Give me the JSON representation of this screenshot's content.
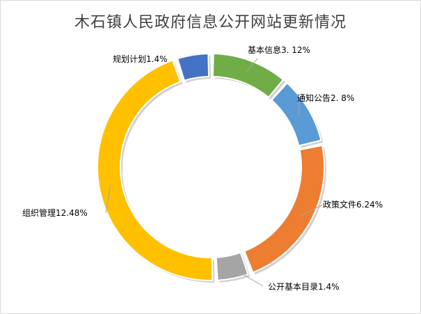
{
  "chart_data": {
    "type": "pie",
    "variant": "doughnut",
    "title": "木石镇人民政府信息公开网站更新情况",
    "slices": [
      {
        "label": "基本信息",
        "value": 3.12,
        "text": "基本信息3. 12%",
        "color": "#70ad47"
      },
      {
        "label": "通知公告",
        "value": 2.8,
        "text": "通知公告2. 8%",
        "color": "#5b9bd5"
      },
      {
        "label": "政策文件",
        "value": 6.24,
        "text": "政策文件6.24%",
        "color": "#ed7d31"
      },
      {
        "label": "公开基本目录",
        "value": 1.4,
        "text": "公开基本目录1.4%",
        "color": "#a5a5a5"
      },
      {
        "label": "组织管理",
        "value": 12.48,
        "text": "组织管理12.48%",
        "color": "#ffc000"
      },
      {
        "label": "规划计划",
        "value": 1.4,
        "text": "规划计划1.4%",
        "color": "#4472c4"
      }
    ],
    "legend": "none",
    "data_labels": "outside-with-leader-lines"
  }
}
